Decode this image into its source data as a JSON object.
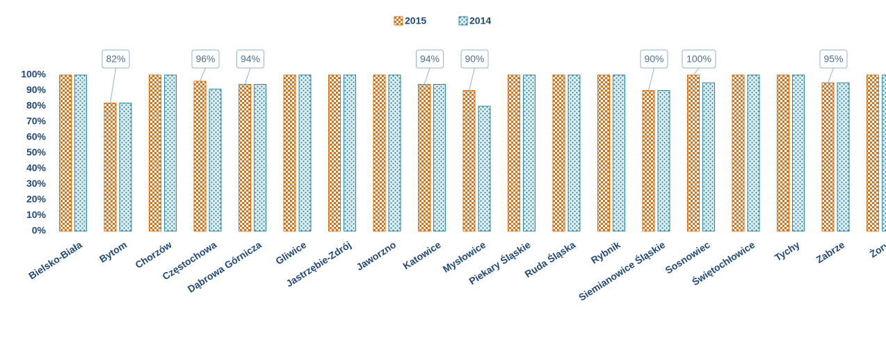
{
  "chart_data": {
    "type": "bar",
    "categories": [
      "Bielsko-Biała",
      "Bytom",
      "Chorzów",
      "Częstochowa",
      "Dąbrowa Górnicza",
      "Gliwice",
      "Jastrzębie-Zdrój",
      "Jaworzno",
      "Katowice",
      "Mysłowice",
      "Piekary Śląskie",
      "Ruda Śląska",
      "Rybnik",
      "Siemianowice Śląskie",
      "Sosnowiec",
      "Świętochłowice",
      "Tychy",
      "Zabrze",
      "Żory"
    ],
    "series": [
      {
        "name": "2015",
        "color": "#e46c0a",
        "pattern": "checker",
        "values": [
          100,
          82,
          100,
          96,
          94,
          100,
          100,
          100,
          94,
          90,
          100,
          100,
          100,
          90,
          100,
          100,
          100,
          95,
          100
        ],
        "value_labels": [
          null,
          "82%",
          null,
          "96%",
          "94%",
          null,
          null,
          null,
          "94%",
          "90%",
          null,
          null,
          null,
          "90%",
          "100%",
          null,
          null,
          "95%",
          null
        ]
      },
      {
        "name": "2014",
        "color": "#31859c",
        "pattern": "dots",
        "values": [
          100,
          82,
          100,
          91,
          94,
          100,
          100,
          100,
          94,
          80,
          100,
          100,
          100,
          90,
          95,
          100,
          100,
          95,
          100
        ]
      }
    ],
    "ylim": [
      0,
      100
    ],
    "yticks": [
      {
        "value": 0,
        "label": "0%"
      },
      {
        "value": 10,
        "label": "10%"
      },
      {
        "value": 20,
        "label": "20%"
      },
      {
        "value": 30,
        "label": "30%"
      },
      {
        "value": 40,
        "label": "40%"
      },
      {
        "value": 50,
        "label": "50%"
      },
      {
        "value": 60,
        "label": "60%"
      },
      {
        "value": 70,
        "label": "70%"
      },
      {
        "value": 80,
        "label": "80%"
      },
      {
        "value": 90,
        "label": "90%"
      },
      {
        "value": 100,
        "label": "100%"
      }
    ],
    "legend": "top",
    "grid": false
  }
}
